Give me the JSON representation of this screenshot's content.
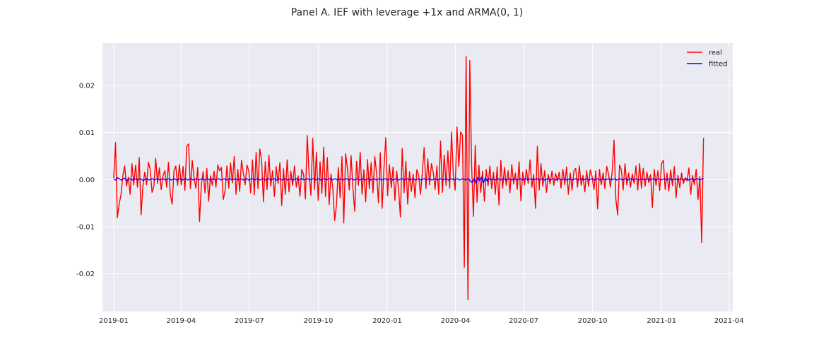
{
  "chart_data": {
    "type": "line",
    "title": "Panel A. IEF with leverage +1x and ARMA(0, 1)",
    "xlabel": "",
    "ylabel": "",
    "x_tick_labels": [
      "2019-01",
      "2019-04",
      "2019-07",
      "2019-10",
      "2020-01",
      "2020-04",
      "2020-07",
      "2020-10",
      "2021-01",
      "2021-04"
    ],
    "y_tick_labels": [
      "0.02",
      "0.01",
      "0.00",
      "-0.01",
      "-0.02"
    ],
    "y_ticks": [
      0.02,
      0.01,
      0.0,
      -0.01,
      -0.02
    ],
    "ylim": [
      -0.028,
      0.029
    ],
    "xlim": [
      "2018-12-17",
      "2021-04-06"
    ],
    "grid": true,
    "legend_position": "top-right",
    "x_sampling": "approx. every 2 days from 2019-01-01 to 2021-02-26",
    "series": [
      {
        "name": "real",
        "color": "#ff0000",
        "values": [
          0.0003,
          0.0079,
          -0.0081,
          -0.0052,
          -0.0032,
          0.0008,
          0.0029,
          -0.0014,
          0.0005,
          -0.0031,
          0.0034,
          -0.0011,
          0.0031,
          -0.0016,
          0.0047,
          -0.0075,
          -0.0013,
          0.0016,
          -0.0011,
          0.0037,
          0.0022,
          -0.0027,
          -0.0014,
          0.0045,
          -0.0008,
          0.0025,
          -0.0021,
          0.0008,
          0.0019,
          -0.0016,
          0.0037,
          -0.0031,
          -0.0052,
          0.0019,
          0.0029,
          -0.0012,
          0.0032,
          -0.0011,
          0.0028,
          -0.0023,
          0.0071,
          0.0076,
          -0.0019,
          0.0041,
          0.0004,
          -0.0018,
          0.0026,
          -0.0089,
          -0.0011,
          0.0017,
          -0.0028,
          0.0024,
          -0.0046,
          0.0008,
          -0.0012,
          0.0018,
          -0.0016,
          0.0031,
          0.0019,
          0.0026,
          -0.0042,
          -0.0024,
          0.0029,
          -0.0018,
          0.0035,
          -0.0007,
          0.0049,
          -0.0031,
          0.0022,
          -0.0025,
          0.0041,
          0.0014,
          -0.0011,
          0.0031,
          0.0018,
          -0.0028,
          0.0042,
          -0.0032,
          0.0058,
          -0.0019,
          0.0065,
          0.0041,
          -0.0047,
          0.0038,
          -0.0021,
          0.0052,
          -0.0014,
          0.0019,
          -0.0036,
          0.0028,
          -0.0008,
          0.0036,
          -0.0055,
          0.0023,
          -0.0031,
          0.0042,
          -0.0026,
          0.0018,
          -0.0012,
          0.0029,
          -0.0016,
          0.0008,
          -0.0035,
          0.0022,
          0.0011,
          -0.0041,
          0.0094,
          0.0012,
          -0.0033,
          0.0088,
          -0.0021,
          0.0058,
          -0.0044,
          0.0038,
          -0.0029,
          0.0069,
          -0.0036,
          0.0047,
          -0.0053,
          0.0012,
          -0.0018,
          -0.0087,
          -0.0054,
          0.0026,
          -0.0038,
          0.0049,
          -0.0092,
          0.0055,
          0.0024,
          -0.0022,
          0.0051,
          -0.0018,
          -0.0067,
          0.0039,
          -0.0012,
          0.0058,
          -0.0031,
          0.0021,
          -0.0047,
          0.0043,
          -0.0019,
          0.0036,
          -0.0028,
          0.0049,
          0.0012,
          -0.0049,
          0.0057,
          -0.0061,
          0.0024,
          0.0089,
          -0.0034,
          0.0032,
          -0.0017,
          0.0027,
          -0.0044,
          0.0018,
          -0.0021,
          -0.0079,
          0.0066,
          -0.0028,
          0.0039,
          -0.0052,
          0.0017,
          -0.0025,
          0.0012,
          -0.0038,
          0.0021,
          0.0009,
          -0.0031,
          0.0014,
          0.0068,
          -0.0019,
          0.0044,
          -0.0011,
          0.0034,
          0.0016,
          -0.0021,
          0.0029,
          -0.0031,
          0.0082,
          -0.0027,
          0.0052,
          -0.0012,
          0.0061,
          -0.0018,
          0.0101,
          0.0009,
          -0.0022,
          0.0112,
          0.0028,
          0.0101,
          0.0094,
          -0.0186,
          0.0262,
          -0.0255,
          0.0253,
          0.0031,
          -0.0078,
          0.0073,
          -0.0048,
          0.0031,
          -0.0027,
          0.0018,
          -0.0046,
          0.0022,
          -0.0013,
          0.0029,
          -0.0019,
          0.0016,
          -0.0031,
          0.0027,
          -0.0054,
          0.0041,
          -0.0018,
          0.0026,
          -0.0012,
          0.0019,
          -0.0028,
          0.0032,
          -0.0009,
          0.0014,
          -0.0021,
          0.0038,
          -0.0045,
          0.0016,
          -0.0011,
          0.0022,
          -0.0008,
          0.0042,
          -0.0016,
          0.0011,
          -0.0061,
          0.0071,
          -0.0022,
          0.0034,
          -0.0014,
          0.0019,
          -0.0027,
          0.0011,
          -0.0009,
          0.0018,
          -0.0012,
          0.0013,
          -0.0003,
          0.0016,
          -0.0018,
          0.0022,
          -0.0011,
          0.0027,
          -0.0031,
          0.0014,
          -0.0022,
          0.0018,
          0.0024,
          -0.0016,
          0.0029,
          -0.0012,
          0.0009,
          -0.0026,
          0.0019,
          -0.0014,
          0.0021,
          0.0006,
          -0.0021,
          0.0019,
          -0.0062,
          0.0022,
          -0.0011,
          0.0014,
          -0.0019,
          0.0028,
          0.0012,
          -0.0016,
          0.0018,
          0.0084,
          -0.0042,
          -0.0075,
          0.0031,
          0.0021,
          -0.0022,
          0.0034,
          -0.0011,
          0.0014,
          -0.0016,
          0.0012,
          -0.0008,
          0.0029,
          -0.0022,
          0.0034,
          -0.0018,
          0.0024,
          -0.0014,
          0.0016,
          -0.0006,
          0.0011,
          -0.0059,
          0.0022,
          -0.0012,
          0.0019,
          -0.0023,
          0.0034,
          0.0041,
          -0.0021,
          0.0014,
          -0.0024,
          0.0021,
          -0.0013,
          0.0028,
          -0.0038,
          0.0009,
          -0.0017,
          0.0014,
          -0.0008,
          0.0004,
          -0.0003,
          0.0025,
          -0.0031,
          0.0009,
          -0.0011,
          0.0022,
          -0.0042,
          0.0007,
          -0.0134,
          0.0089
        ]
      },
      {
        "name": "fitted",
        "color": "#0000ff",
        "values": [
          0.0001,
          -0.0001,
          0.0004,
          0.0002,
          -0.0001,
          0.0001,
          0.0003,
          -0.0002,
          0.0001,
          0.0002,
          -0.0001,
          0.0002,
          0.0001,
          -0.0001,
          0.0002,
          0.0001,
          -0.0002,
          0.0001,
          0.0002,
          -0.0001,
          0.0001,
          0.0002,
          -0.0001,
          0.0001,
          0.0002,
          -0.0001,
          0.0001,
          0.0002,
          -0.0001,
          0.0001,
          0.0002,
          -0.0001,
          0.0001,
          0.0002,
          -0.0001,
          0.0001,
          0.0002,
          -0.0001,
          0.0001,
          0.0002,
          -0.0001,
          0.0001,
          0.0002,
          -0.0001,
          0.0001,
          0.0002,
          -0.0001,
          0.0001,
          0.0002,
          -0.0001,
          0.0001,
          0.0002,
          -0.0001,
          0.0001,
          0.0002,
          -0.0001,
          0.0001,
          0.0002,
          -0.0001,
          0.0001,
          0.0002,
          -0.0001,
          0.0001,
          0.0002,
          -0.0001,
          0.0001,
          0.0002,
          -0.0001,
          0.0001,
          0.0002,
          -0.0001,
          0.0001,
          0.0002,
          -0.0001,
          0.0001,
          0.0002,
          -0.0001,
          0.0001,
          0.0002,
          -0.0001,
          0.0001,
          0.0002,
          -0.0001,
          0.0001,
          0.0002,
          -0.0001,
          0.0001,
          0.0002,
          -0.0001,
          0.0001,
          0.0002,
          -0.0001,
          0.0001,
          0.0002,
          -0.0001,
          0.0001,
          0.0002,
          -0.0001,
          0.0001,
          0.0002,
          -0.0001,
          0.0001,
          0.0002,
          -0.0001,
          0.0001,
          0.0002,
          -0.0001,
          0.0001,
          0.0002,
          -0.0001,
          0.0001,
          0.0002,
          -0.0001,
          0.0001,
          0.0002,
          -0.0001,
          0.0001,
          0.0002,
          -0.0001,
          0.0001,
          0.0002,
          -0.0001,
          0.0001,
          0.0002,
          -0.0001,
          0.0001,
          0.0002,
          -0.0001,
          0.0001,
          0.0002,
          -0.0001,
          0.0001,
          0.0002,
          -0.0001,
          0.0001,
          0.0002,
          -0.0001,
          0.0001,
          0.0002,
          -0.0001,
          0.0001,
          0.0002,
          -0.0001,
          0.0001,
          0.0002,
          -0.0001,
          0.0001,
          0.0002,
          -0.0001,
          0.0001,
          0.0002,
          -0.0001,
          0.0001,
          0.0002,
          -0.0001,
          0.0001,
          0.0002,
          -0.0001,
          0.0001,
          0.0002,
          -0.0001,
          0.0001,
          0.0002,
          -0.0001,
          0.0001,
          0.0002,
          -0.0001,
          0.0001,
          0.0002,
          -0.0001,
          0.0001,
          0.0002,
          -0.0001,
          0.0001,
          0.0002,
          -0.0001,
          0.0001,
          0.0002,
          -0.0001,
          0.0001,
          0.0002,
          -0.0001,
          0.0001,
          0.0002,
          -0.0001,
          0.0001,
          0.0002,
          -0.0001,
          0.0001,
          0.0002,
          -0.0001,
          0.0001,
          0.0002,
          -0.0004,
          -0.0006,
          0.0003,
          -0.0008,
          0.0006,
          -0.0002,
          0.0005,
          -0.0007,
          0.0004,
          -0.0003,
          0.0003,
          -0.0001,
          0.0002,
          -0.0001,
          0.0001,
          0.0002,
          -0.0001,
          0.0001,
          0.0002,
          -0.0001,
          0.0001,
          0.0002,
          -0.0001,
          0.0001,
          0.0002,
          -0.0001,
          0.0001,
          0.0002,
          -0.0001,
          0.0001,
          0.0002,
          -0.0001,
          0.0001,
          0.0002,
          -0.0001,
          0.0001,
          0.0002,
          -0.0001,
          0.0001,
          0.0002,
          -0.0001,
          0.0001,
          0.0002,
          -0.0001,
          0.0001,
          0.0002,
          -0.0001,
          0.0001,
          0.0002,
          -0.0001,
          0.0001,
          0.0002,
          -0.0001,
          0.0001,
          0.0002,
          -0.0001,
          0.0001,
          0.0002,
          -0.0001,
          0.0001,
          0.0002,
          -0.0001,
          0.0001,
          0.0002,
          -0.0001,
          0.0001,
          0.0002,
          -0.0001,
          0.0001,
          0.0002,
          -0.0001,
          0.0001,
          0.0002,
          -0.0001,
          0.0001,
          0.0002,
          -0.0001,
          0.0001,
          0.0002,
          -0.0001,
          0.0001,
          0.0002,
          -0.0001,
          0.0001,
          0.0002,
          -0.0001,
          0.0001,
          0.0002,
          -0.0001,
          0.0001,
          0.0002,
          -0.0001,
          0.0001,
          0.0002,
          -0.0001,
          0.0001,
          0.0002,
          -0.0001,
          0.0001,
          0.0002,
          -0.0001,
          0.0001,
          0.0002,
          -0.0001,
          0.0001,
          0.0002,
          -0.0001,
          0.0001,
          0.0002,
          -0.0001,
          0.0001,
          0.0002,
          -0.0001,
          0.0001,
          0.0002,
          -0.0001,
          0.0001,
          0.0002,
          -0.0001,
          0.0001,
          0.0002,
          -0.0001,
          0.0001,
          0.0002,
          -0.0001,
          0.0001,
          0.0003
        ]
      }
    ]
  },
  "colors": {
    "plot_background": "#eaeaf2",
    "grid": "#ffffff",
    "text": "#262626"
  }
}
